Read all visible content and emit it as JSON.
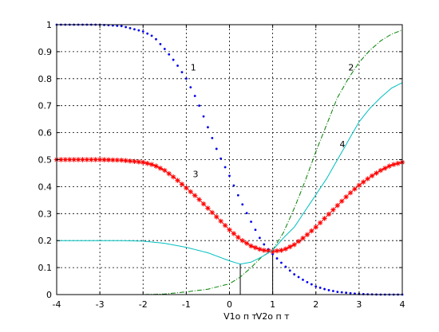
{
  "chart_data": {
    "type": "line",
    "title": "",
    "xlabel": "",
    "ylabel": "",
    "xlim": [
      -4,
      4
    ],
    "ylim": [
      0,
      1
    ],
    "x_ticks": [
      -4,
      -3,
      -2,
      -1,
      0,
      1,
      2,
      3,
      4
    ],
    "x_tick_labels": [
      "-4",
      "-3",
      "-2",
      "-1",
      "0",
      "1",
      "2",
      "3",
      "4"
    ],
    "y_ticks": [
      0,
      0.1,
      0.2,
      0.3,
      0.4,
      0.5,
      0.6,
      0.7,
      0.8,
      0.9,
      1
    ],
    "y_tick_labels": [
      "0",
      "0.1",
      "0.2",
      "0.3",
      "0.4",
      "0.5",
      "0.6",
      "0.7",
      "0.8",
      "0.9",
      "1"
    ],
    "grid": true,
    "x_step": 0.125,
    "series": [
      {
        "name": "1",
        "style": "dotted-markers",
        "color": "#0000ee",
        "label_at": [
          -0.9,
          0.83
        ],
        "points": [
          [
            -4,
            1.0
          ],
          [
            -3.5,
            1.0
          ],
          [
            -3,
            1.0
          ],
          [
            -2.5,
            0.995
          ],
          [
            -2.25,
            0.985
          ],
          [
            -2,
            0.975
          ],
          [
            -1.75,
            0.955
          ],
          [
            -1.5,
            0.91
          ],
          [
            -1.25,
            0.86
          ],
          [
            -1,
            0.8
          ],
          [
            -0.75,
            0.72
          ],
          [
            -0.5,
            0.62
          ],
          [
            -0.25,
            0.52
          ],
          [
            0,
            0.44
          ],
          [
            0.25,
            0.35
          ],
          [
            0.5,
            0.27
          ],
          [
            0.75,
            0.195
          ],
          [
            1,
            0.15
          ],
          [
            1.25,
            0.11
          ],
          [
            1.5,
            0.075
          ],
          [
            1.75,
            0.05
          ],
          [
            2,
            0.03
          ],
          [
            2.25,
            0.018
          ],
          [
            2.5,
            0.01
          ],
          [
            3,
            0.002
          ],
          [
            3.5,
            0.0
          ],
          [
            4,
            0.0
          ]
        ]
      },
      {
        "name": "2",
        "style": "dashdot",
        "color": "#007f00",
        "label_at": [
          2.75,
          0.83
        ],
        "points": [
          [
            -4,
            0.0
          ],
          [
            -2,
            0.0
          ],
          [
            -1.5,
            0.002
          ],
          [
            -1,
            0.01
          ],
          [
            -0.5,
            0.02
          ],
          [
            0,
            0.04
          ],
          [
            0.25,
            0.065
          ],
          [
            0.5,
            0.1
          ],
          [
            0.75,
            0.14
          ],
          [
            1,
            0.165
          ],
          [
            1.25,
            0.23
          ],
          [
            1.5,
            0.32
          ],
          [
            1.75,
            0.42
          ],
          [
            2,
            0.53
          ],
          [
            2.25,
            0.63
          ],
          [
            2.5,
            0.73
          ],
          [
            2.75,
            0.8
          ],
          [
            3,
            0.86
          ],
          [
            3.25,
            0.905
          ],
          [
            3.5,
            0.94
          ],
          [
            3.75,
            0.965
          ],
          [
            4,
            0.98
          ]
        ]
      },
      {
        "name": "3",
        "style": "star-markers",
        "color": "#ff0000",
        "label_at": [
          -0.85,
          0.435
        ],
        "points": [
          [
            -4,
            0.5
          ],
          [
            -3,
            0.5
          ],
          [
            -2.5,
            0.498
          ],
          [
            -2,
            0.49
          ],
          [
            -1.75,
            0.48
          ],
          [
            -1.5,
            0.46
          ],
          [
            -1.25,
            0.43
          ],
          [
            -1,
            0.395
          ],
          [
            -0.75,
            0.36
          ],
          [
            -0.5,
            0.32
          ],
          [
            -0.25,
            0.28
          ],
          [
            0,
            0.24
          ],
          [
            0.25,
            0.205
          ],
          [
            0.5,
            0.18
          ],
          [
            0.75,
            0.165
          ],
          [
            1,
            0.16
          ],
          [
            1.25,
            0.165
          ],
          [
            1.5,
            0.185
          ],
          [
            1.75,
            0.215
          ],
          [
            2,
            0.25
          ],
          [
            2.25,
            0.29
          ],
          [
            2.5,
            0.33
          ],
          [
            2.75,
            0.37
          ],
          [
            3,
            0.405
          ],
          [
            3.25,
            0.435
          ],
          [
            3.5,
            0.46
          ],
          [
            3.75,
            0.48
          ],
          [
            4,
            0.49
          ]
        ]
      },
      {
        "name": "4",
        "style": "solid",
        "color": "#00bfbf",
        "label_at": [
          2.55,
          0.545
        ],
        "points": [
          [
            -4,
            0.2
          ],
          [
            -3,
            0.2
          ],
          [
            -2.5,
            0.2
          ],
          [
            -2,
            0.198
          ],
          [
            -1.5,
            0.19
          ],
          [
            -1,
            0.175
          ],
          [
            -0.5,
            0.155
          ],
          [
            0,
            0.125
          ],
          [
            0.25,
            0.113
          ],
          [
            0.5,
            0.12
          ],
          [
            0.75,
            0.14
          ],
          [
            1,
            0.165
          ],
          [
            1.25,
            0.21
          ],
          [
            1.5,
            0.25
          ],
          [
            1.75,
            0.31
          ],
          [
            2,
            0.37
          ],
          [
            2.25,
            0.43
          ],
          [
            2.5,
            0.5
          ],
          [
            2.75,
            0.57
          ],
          [
            3,
            0.64
          ],
          [
            3.25,
            0.69
          ],
          [
            3.5,
            0.73
          ],
          [
            3.75,
            0.765
          ],
          [
            4,
            0.785
          ]
        ]
      }
    ],
    "annotations": [
      {
        "text": "V1о п т",
        "x": 0.25,
        "y_bottom": 0,
        "y_top": 0.115
      },
      {
        "text": "V2о п т",
        "x": 1.0,
        "y_bottom": 0,
        "y_top": 0.16
      }
    ]
  }
}
